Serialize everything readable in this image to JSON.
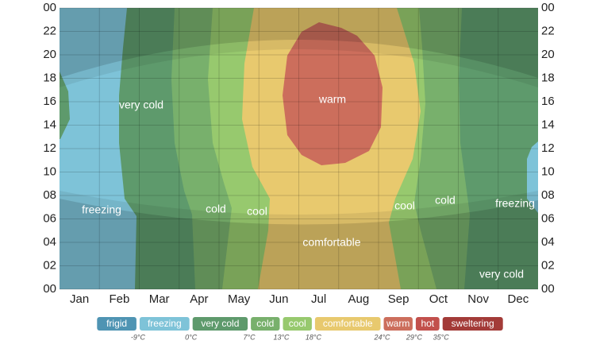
{
  "chart_data": {
    "type": "band-heatmap",
    "categories": [
      "Jan",
      "Feb",
      "Mar",
      "Apr",
      "May",
      "Jun",
      "Jul",
      "Aug",
      "Sep",
      "Oct",
      "Nov",
      "Dec"
    ],
    "ylim": [
      0,
      24
    ],
    "yticks": [
      {
        "value": 0,
        "label": "00"
      },
      {
        "value": 2,
        "label": "02"
      },
      {
        "value": 4,
        "label": "04"
      },
      {
        "value": 6,
        "label": "06"
      },
      {
        "value": 8,
        "label": "08"
      },
      10,
      12,
      14,
      16,
      18,
      20,
      22,
      {
        "value": 24,
        "label": "00"
      }
    ],
    "grid": true,
    "annotations": [
      "very cold",
      "warm",
      "freezing",
      "cold",
      "cool",
      "comfortable",
      "cool",
      "cold",
      "freezing",
      "very cold"
    ],
    "legend": [
      {
        "name": "frigid",
        "color": "#4f94b3"
      },
      {
        "name": "freezing",
        "color": "#7ec3d8"
      },
      {
        "name": "very cold",
        "color": "#5e9a6c"
      },
      {
        "name": "cold",
        "color": "#78b06c"
      },
      {
        "name": "cool",
        "color": "#97c96e"
      },
      {
        "name": "comfortable",
        "color": "#e8c96e"
      },
      {
        "name": "warm",
        "color": "#cc6e5c"
      },
      {
        "name": "hot",
        "color": "#c2504c"
      },
      {
        "name": "sweltering",
        "color": "#a33b38"
      }
    ],
    "thresholds": [
      "-9°C",
      "0°C",
      "7°C",
      "13°C",
      "18°C",
      "24°C",
      "29°C",
      "35°C"
    ]
  }
}
